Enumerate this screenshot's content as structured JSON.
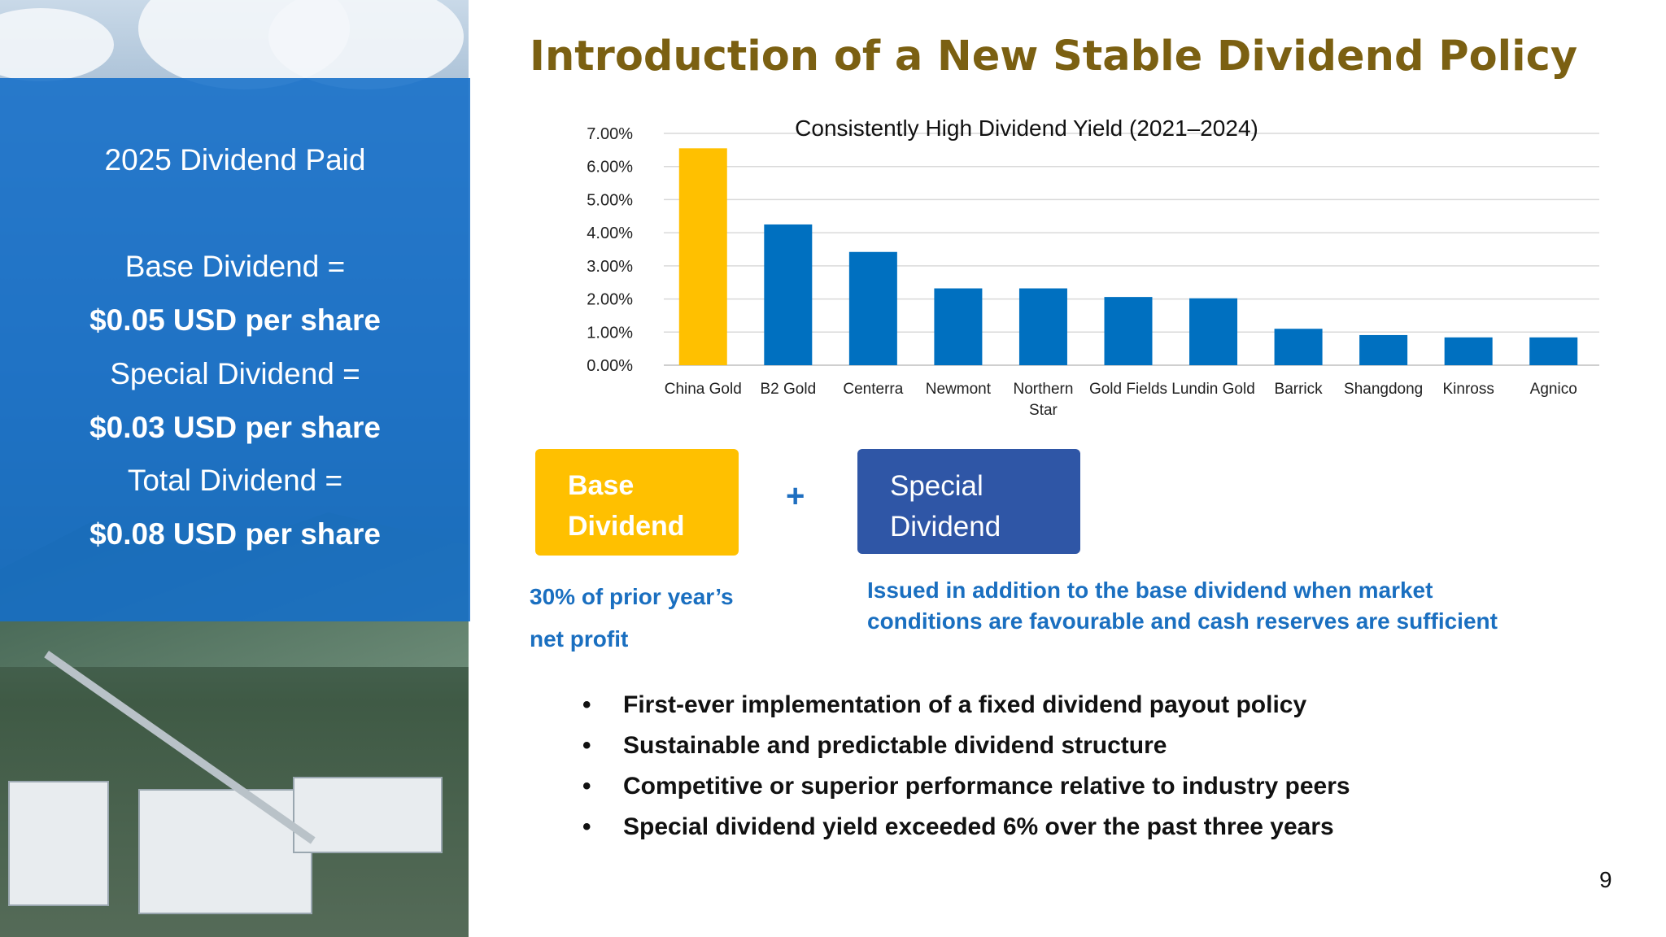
{
  "left_panel": {
    "heading": "2025 Dividend Paid",
    "base_label": "Base Dividend =",
    "base_value": "$0.05 USD per share",
    "special_label": "Special Dividend =",
    "special_value": "$0.03 USD per share",
    "total_label": "Total Dividend =",
    "total_value": "$0.08 USD per share"
  },
  "title": "Introduction of a New Stable Dividend Policy",
  "chart_data": {
    "type": "bar",
    "title": "Consistently High Dividend Yield (2021–2024)",
    "xlabel": "",
    "ylabel": "",
    "categories": [
      "China Gold",
      "B2 Gold",
      "Centerra",
      "Newmont",
      "Northern Star",
      "Gold Fields",
      "Lundin Gold",
      "Barrick",
      "Shangdong",
      "Kinross",
      "Agnico"
    ],
    "category_lines": [
      [
        "China Gold"
      ],
      [
        "B2 Gold"
      ],
      [
        "Centerra"
      ],
      [
        "Newmont"
      ],
      [
        "Northern",
        "Star"
      ],
      [
        "Gold Fields"
      ],
      [
        "Lundin Gold"
      ],
      [
        "Barrick"
      ],
      [
        "Shangdong"
      ],
      [
        "Kinross"
      ],
      [
        "Agnico"
      ]
    ],
    "values": [
      6.55,
      4.25,
      3.42,
      2.32,
      2.32,
      2.06,
      2.02,
      1.1,
      0.91,
      0.84,
      0.84
    ],
    "ylim": [
      0,
      7
    ],
    "yticks": [
      "0.00%",
      "1.00%",
      "2.00%",
      "3.00%",
      "4.00%",
      "5.00%",
      "6.00%",
      "7.00%"
    ],
    "grid": true,
    "colors": {
      "highlight": "#ffc000",
      "default": "#0070c0"
    },
    "highlight_index": 0
  },
  "base_box": {
    "line1": "Base",
    "line2": "Dividend",
    "color": "#ffc000"
  },
  "plus": "+",
  "special_box": {
    "line1": "Special",
    "line2": "Dividend",
    "color": "#2f56a6"
  },
  "base_desc": "30% of prior year’s net profit",
  "special_desc": "Issued in addition to the base dividend when market conditions are favourable and cash reserves are sufficient",
  "bullets": [
    "First-ever implementation of a fixed dividend payout policy",
    "Sustainable and predictable dividend structure",
    "Competitive or superior performance relative to industry peers",
    "Special dividend yield exceeded 6% over the past three years"
  ],
  "bullet_symbol": "•",
  "page_number": "9"
}
